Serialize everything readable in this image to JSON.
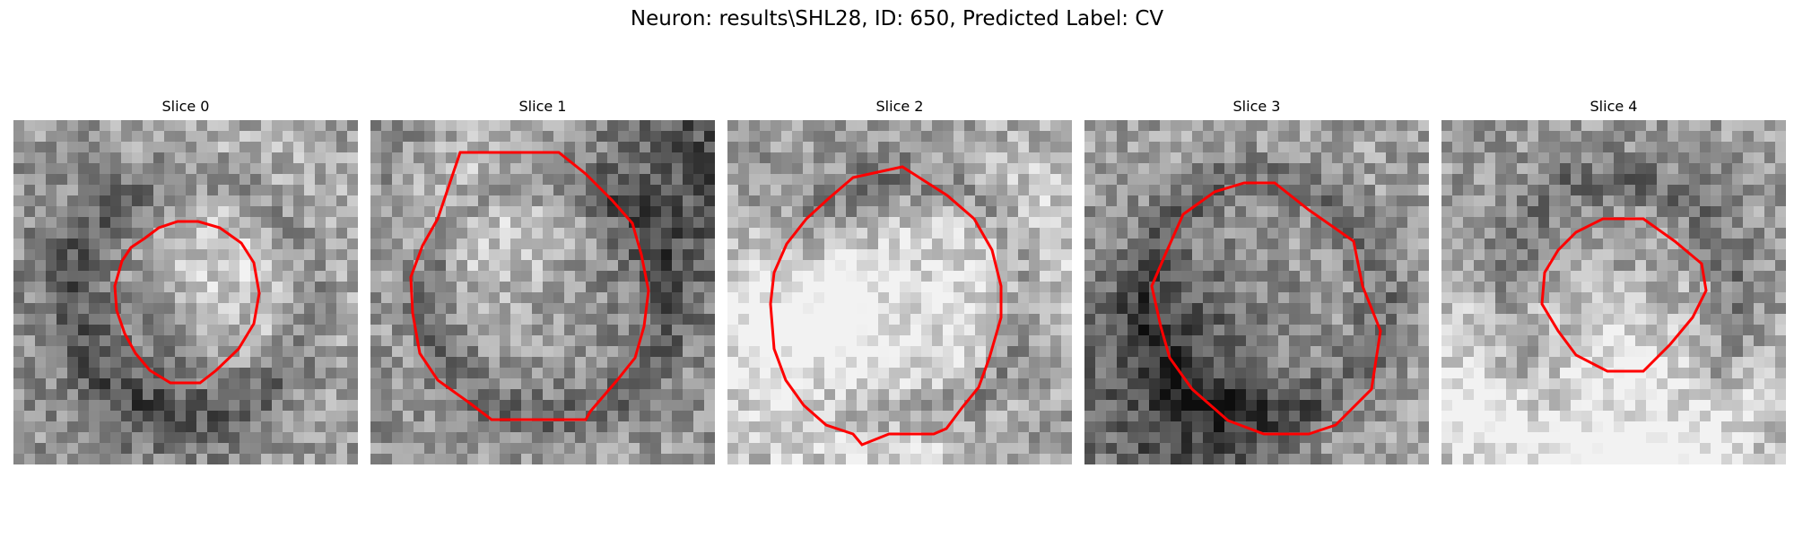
{
  "figure": {
    "title": "Neuron: results\\SHL28, ID: 650, Predicted Label: CV",
    "contour_color": "#ff0000"
  },
  "panels": [
    {
      "title": "Slice 0",
      "seed": 11,
      "brightness": 0.62,
      "contour": "dark-ring-center",
      "contour_icon": "red-contour-outline"
    },
    {
      "title": "Slice 1",
      "seed": 23,
      "brightness": 0.6,
      "contour": "large-octagon",
      "contour_icon": "red-contour-outline"
    },
    {
      "title": "Slice 2",
      "seed": 37,
      "brightness": 0.58,
      "contour": "large-circle",
      "contour_icon": "red-contour-outline"
    },
    {
      "title": "Slice 3",
      "seed": 41,
      "brightness": 0.64,
      "contour": "lower-blob",
      "contour_icon": "red-contour-outline"
    },
    {
      "title": "Slice 4",
      "seed": 53,
      "brightness": 0.6,
      "contour": "small-dark-blob",
      "contour_icon": "red-contour-outline"
    }
  ]
}
